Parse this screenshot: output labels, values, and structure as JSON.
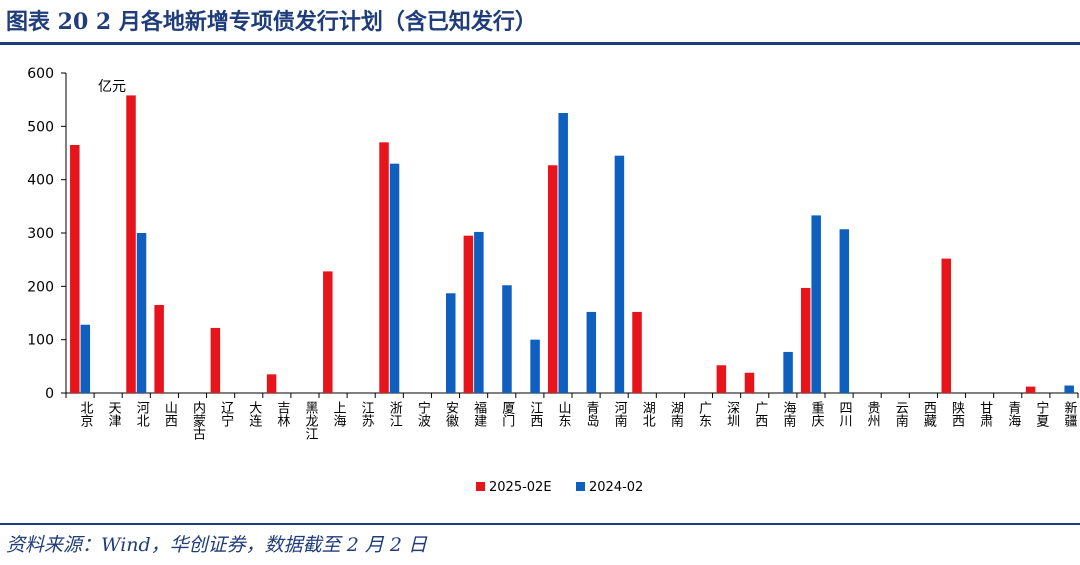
{
  "header": {
    "title": "图表 20    2 月各地新增专项债发行计划（含已知发行）"
  },
  "footer": {
    "source": "资料来源：Wind，华创证券，数据截至 2 月 2 日"
  },
  "chart_data": {
    "type": "bar",
    "title": "2月各地新增专项债发行计划（含已知发行）",
    "unit_label": "亿元",
    "xlabel": "",
    "ylabel": "",
    "ylim": [
      0,
      600
    ],
    "yticks": [
      0,
      100,
      200,
      300,
      400,
      500,
      600
    ],
    "legend_position": "bottom-center",
    "colors": {
      "2025-02E": "#e8141c",
      "2024-02": "#0f5fbf"
    },
    "categories": [
      "北京",
      "天津",
      "河北",
      "山西",
      "内蒙古",
      "辽宁",
      "大连",
      "吉林",
      "黑龙江",
      "上海",
      "江苏",
      "浙江",
      "宁波",
      "安徽",
      "福建",
      "厦门",
      "江西",
      "山东",
      "青岛",
      "河南",
      "湖北",
      "湖南",
      "广东",
      "深圳",
      "广西",
      "海南",
      "重庆",
      "四川",
      "贵州",
      "云南",
      "西藏",
      "陕西",
      "甘肃",
      "青海",
      "宁夏",
      "新疆"
    ],
    "series": [
      {
        "name": "2025-02E",
        "values": [
          465,
          0,
          558,
          165,
          0,
          122,
          0,
          35,
          0,
          228,
          0,
          470,
          0,
          0,
          295,
          0,
          0,
          427,
          0,
          0,
          152,
          0,
          0,
          52,
          38,
          0,
          197,
          0,
          0,
          0,
          0,
          252,
          0,
          0,
          12,
          0
        ]
      },
      {
        "name": "2024-02",
        "values": [
          128,
          0,
          300,
          0,
          0,
          0,
          0,
          0,
          0,
          0,
          0,
          430,
          0,
          187,
          302,
          202,
          100,
          525,
          152,
          445,
          0,
          0,
          0,
          0,
          0,
          77,
          333,
          307,
          0,
          0,
          0,
          0,
          0,
          0,
          0,
          14
        ]
      }
    ]
  }
}
